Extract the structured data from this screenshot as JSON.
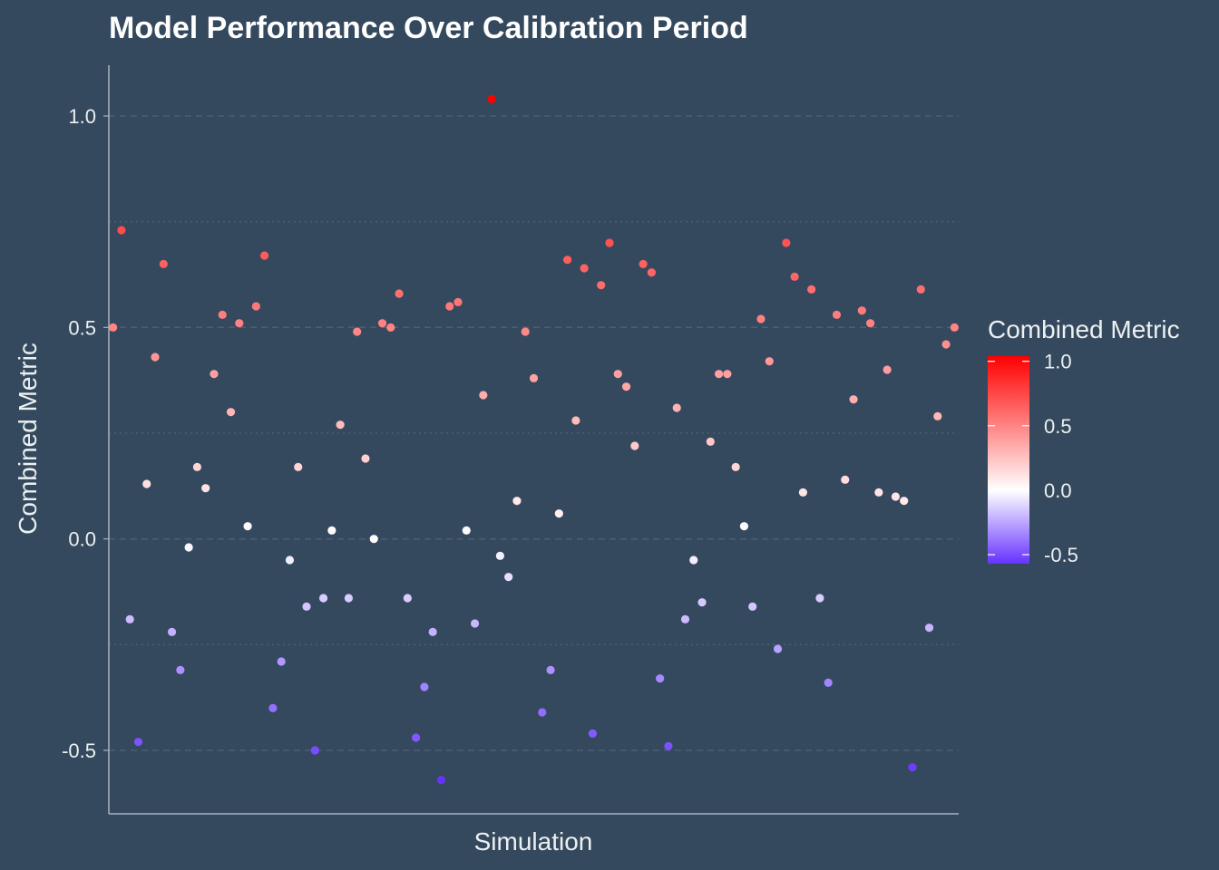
{
  "chart_data": {
    "type": "scatter",
    "title": "Model Performance Over Calibration Period",
    "xlabel": "Simulation",
    "ylabel": "Combined Metric",
    "ylim": [
      -0.65,
      1.12
    ],
    "xlim": [
      0.5,
      101.5
    ],
    "yticks": [
      -0.5,
      0.0,
      0.5,
      1.0
    ],
    "ytick_labels": [
      "-0.5",
      "0.0",
      "0.5",
      "1.0"
    ],
    "grid": {
      "major_y": true,
      "minor_y": true,
      "x": false
    },
    "legend": {
      "title": "Combined Metric",
      "position": "right",
      "ticks": [
        -0.5,
        0.0,
        0.5,
        1.0
      ],
      "tick_labels": [
        "-0.5",
        "0.0",
        "0.5",
        "1.0"
      ],
      "range": [
        -0.57,
        1.04
      ],
      "colors": {
        "low": "#6633ff",
        "mid": "#ffffff",
        "high": "#ff0000"
      }
    },
    "colors": {
      "background": "#34495e",
      "text": "#ecf0f1",
      "grid": "#4a5e74"
    },
    "x": [
      1,
      2,
      3,
      4,
      5,
      6,
      7,
      8,
      9,
      10,
      11,
      12,
      13,
      14,
      15,
      16,
      17,
      18,
      19,
      20,
      21,
      22,
      23,
      24,
      25,
      26,
      27,
      28,
      29,
      30,
      31,
      32,
      33,
      34,
      35,
      36,
      37,
      38,
      39,
      40,
      41,
      42,
      43,
      44,
      45,
      46,
      47,
      48,
      49,
      50,
      51,
      52,
      53,
      54,
      55,
      56,
      57,
      58,
      59,
      60,
      61,
      62,
      63,
      64,
      65,
      66,
      67,
      68,
      69,
      70,
      71,
      72,
      73,
      74,
      75,
      76,
      77,
      78,
      79,
      80,
      81,
      82,
      83,
      84,
      85,
      86,
      87,
      88,
      89,
      90,
      91,
      92,
      93,
      94,
      95,
      96,
      97,
      98,
      99,
      100,
      101
    ],
    "y": [
      0.5,
      0.73,
      -0.19,
      -0.48,
      0.13,
      0.43,
      0.65,
      -0.22,
      -0.31,
      -0.02,
      0.17,
      0.12,
      0.39,
      0.53,
      0.3,
      0.51,
      0.03,
      0.55,
      0.67,
      -0.4,
      -0.29,
      -0.05,
      0.17,
      -0.16,
      -0.5,
      -0.14,
      0.02,
      0.27,
      -0.14,
      0.49,
      0.19,
      0.0,
      0.51,
      0.5,
      0.58,
      -0.14,
      -0.47,
      -0.35,
      -0.22,
      -0.57,
      0.55,
      0.56,
      0.02,
      -0.2,
      0.34,
      1.04,
      -0.04,
      -0.09,
      0.09,
      0.49,
      0.38,
      -0.41,
      -0.31,
      0.06,
      0.66,
      0.28,
      0.64,
      -0.46,
      0.6,
      0.7,
      0.39,
      0.36,
      0.22,
      0.65,
      0.63,
      -0.33,
      -0.49,
      0.31,
      -0.19,
      -0.05,
      -0.15,
      0.23,
      0.39,
      0.39,
      0.17,
      0.03,
      -0.16,
      0.52,
      0.42,
      -0.26,
      0.7,
      0.62,
      0.11,
      0.59,
      -0.14,
      -0.34,
      0.53,
      0.14,
      0.33,
      0.54,
      0.51,
      0.11,
      0.4,
      0.1,
      0.09,
      -0.54,
      0.59,
      -0.21,
      0.29,
      0.46,
      0.5
    ]
  }
}
